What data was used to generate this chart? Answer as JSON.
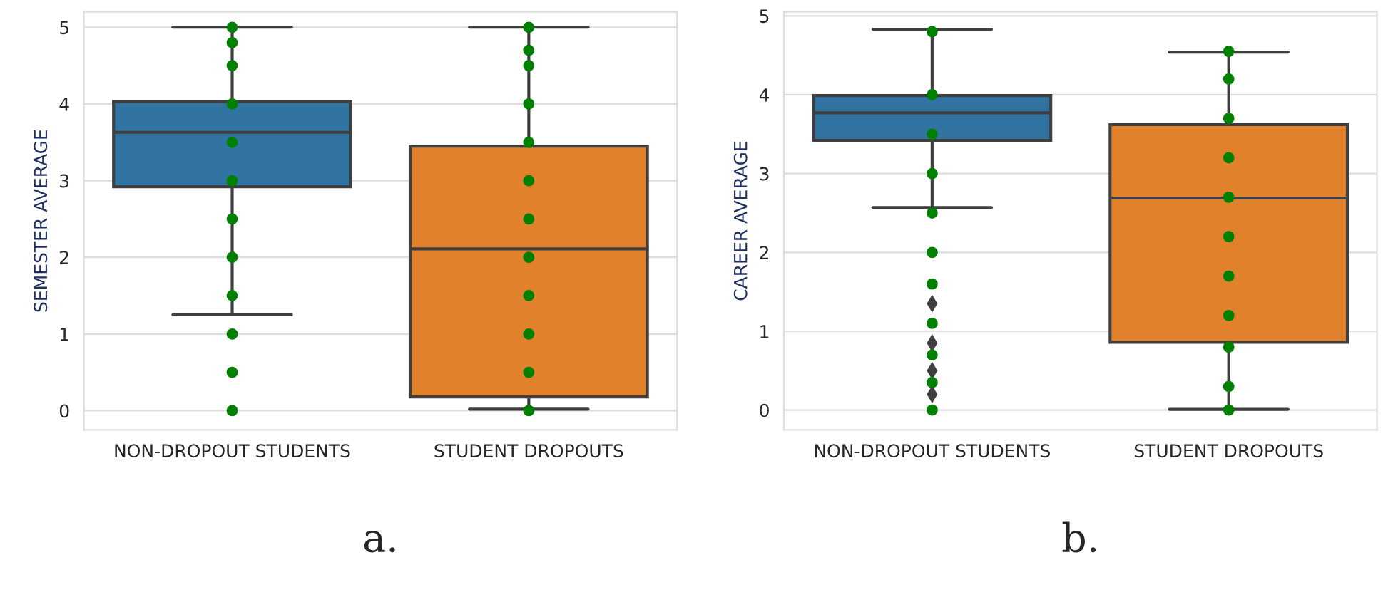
{
  "chart_data": [
    {
      "type": "box",
      "ylabel": "SEMESTER AVERAGE",
      "categories": [
        "NON-DROPOUT STUDENTS",
        "STUDENT DROPOUTS"
      ],
      "colors": [
        "#3274a1",
        "#e1812c"
      ],
      "ylim": [
        -0.25,
        5.2
      ],
      "yticks": [
        0,
        1,
        2,
        3,
        4,
        5
      ],
      "grid": "y",
      "annotations": [
        "a."
      ],
      "boxes": [
        {
          "low": 1.25,
          "q1": 2.92,
          "median": 3.63,
          "q3": 4.03,
          "high": 5.0
        },
        {
          "low": 0.02,
          "q1": 0.18,
          "median": 2.11,
          "q3": 3.45,
          "high": 5.0
        }
      ],
      "series": [
        {
          "type": "scatter",
          "color": "#008000",
          "x": [
            "NON-DROPOUT STUDENTS",
            "NON-DROPOUT STUDENTS",
            "NON-DROPOUT STUDENTS",
            "NON-DROPOUT STUDENTS",
            "NON-DROPOUT STUDENTS",
            "NON-DROPOUT STUDENTS",
            "NON-DROPOUT STUDENTS",
            "NON-DROPOUT STUDENTS",
            "NON-DROPOUT STUDENTS",
            "NON-DROPOUT STUDENTS",
            "NON-DROPOUT STUDENTS",
            "NON-DROPOUT STUDENTS",
            "STUDENT DROPOUTS",
            "STUDENT DROPOUTS",
            "STUDENT DROPOUTS",
            "STUDENT DROPOUTS",
            "STUDENT DROPOUTS",
            "STUDENT DROPOUTS",
            "STUDENT DROPOUTS",
            "STUDENT DROPOUTS",
            "STUDENT DROPOUTS",
            "STUDENT DROPOUTS",
            "STUDENT DROPOUTS",
            "STUDENT DROPOUTS"
          ],
          "values": [
            0,
            0.5,
            1.0,
            1.5,
            2.0,
            2.5,
            3.0,
            3.5,
            4.0,
            4.5,
            4.8,
            5.0,
            0,
            0.5,
            1.0,
            1.5,
            2.0,
            2.5,
            3.0,
            3.5,
            4.0,
            4.5,
            4.7,
            5.0
          ]
        }
      ]
    },
    {
      "type": "box",
      "ylabel": "CAREER AVERAGE",
      "categories": [
        "NON-DROPOUT STUDENTS",
        "STUDENT DROPOUTS"
      ],
      "colors": [
        "#3274a1",
        "#e1812c"
      ],
      "ylim": [
        -0.25,
        5.05
      ],
      "yticks": [
        0,
        1,
        2,
        3,
        4,
        5
      ],
      "grid": "y",
      "annotations": [
        "b."
      ],
      "boxes": [
        {
          "low": 2.57,
          "q1": 3.42,
          "median": 3.77,
          "q3": 3.99,
          "high": 4.83,
          "outliers": [
            0.2,
            0.5,
            0.85,
            1.35
          ]
        },
        {
          "low": 0.01,
          "q1": 0.86,
          "median": 2.69,
          "q3": 3.62,
          "high": 4.54
        }
      ],
      "series": [
        {
          "type": "scatter",
          "color": "#008000",
          "x": [
            "NON-DROPOUT STUDENTS",
            "NON-DROPOUT STUDENTS",
            "NON-DROPOUT STUDENTS",
            "NON-DROPOUT STUDENTS",
            "NON-DROPOUT STUDENTS",
            "NON-DROPOUT STUDENTS",
            "NON-DROPOUT STUDENTS",
            "NON-DROPOUT STUDENTS",
            "NON-DROPOUT STUDENTS",
            "NON-DROPOUT STUDENTS",
            "NON-DROPOUT STUDENTS",
            "STUDENT DROPOUTS",
            "STUDENT DROPOUTS",
            "STUDENT DROPOUTS",
            "STUDENT DROPOUTS",
            "STUDENT DROPOUTS",
            "STUDENT DROPOUTS",
            "STUDENT DROPOUTS",
            "STUDENT DROPOUTS",
            "STUDENT DROPOUTS",
            "STUDENT DROPOUTS",
            "STUDENT DROPOUTS"
          ],
          "values": [
            0,
            0.35,
            0.7,
            1.1,
            1.6,
            2.0,
            2.5,
            3.0,
            3.5,
            4.0,
            4.8,
            0,
            0.3,
            0.8,
            1.2,
            1.7,
            2.2,
            2.7,
            3.2,
            3.7,
            4.2,
            4.55
          ]
        }
      ]
    }
  ]
}
